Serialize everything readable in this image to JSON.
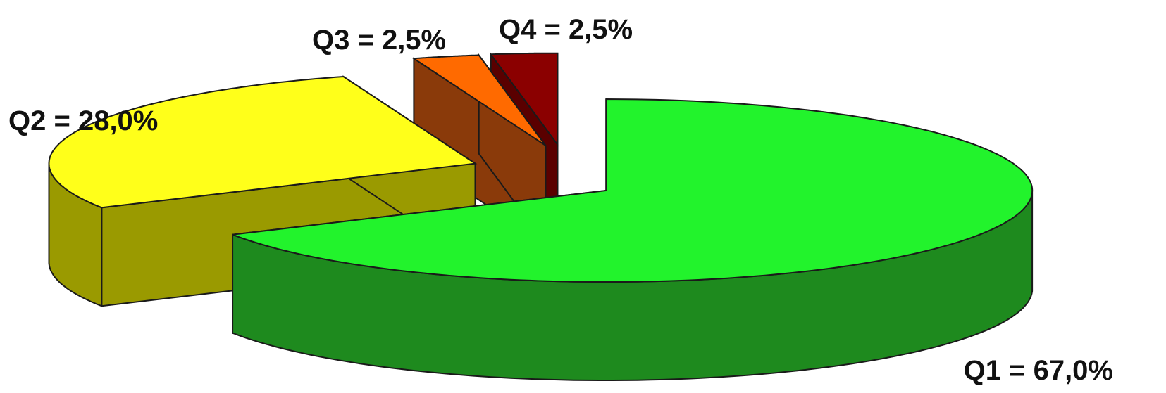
{
  "chart_data": {
    "type": "pie",
    "style": "3d-exploded",
    "slices": [
      {
        "label": "Q1 = 67,0%",
        "category": "Q1",
        "value": 67.0,
        "color_top": "#22F32C",
        "color_side": "#1E8A1E"
      },
      {
        "label": "Q2 = 28,0%",
        "category": "Q2",
        "value": 28.0,
        "color_top": "#FFFF1A",
        "color_side": "#9A9A00"
      },
      {
        "label": "Q3 = 2,5%",
        "category": "Q3",
        "value": 2.5,
        "color_top": "#FF6A00",
        "color_side": "#8A3A0A"
      },
      {
        "label": "Q4 = 2,5%",
        "category": "Q4",
        "value": 2.5,
        "color_top": "#8B0000",
        "color_side": "#5A0000"
      }
    ],
    "title": "",
    "legend": false
  }
}
